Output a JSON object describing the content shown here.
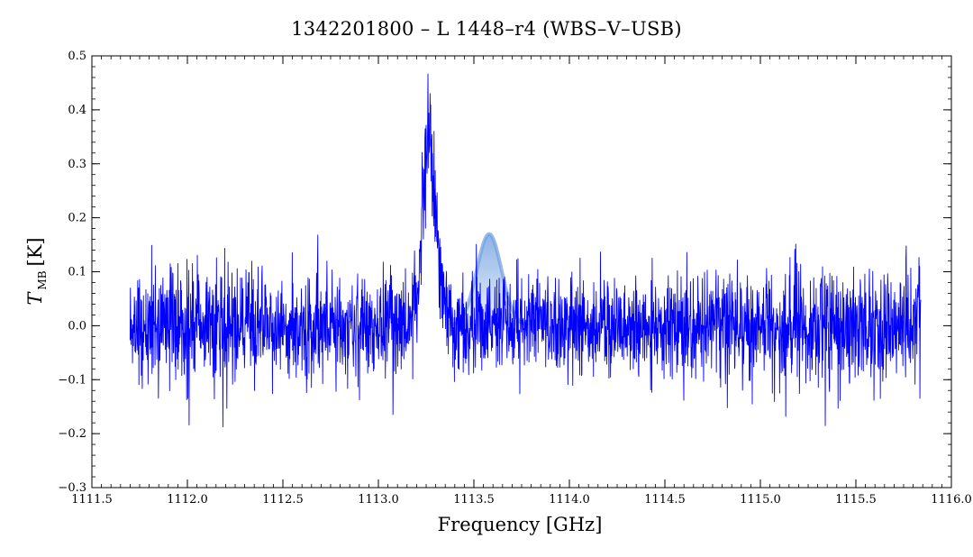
{
  "chart_data": {
    "type": "line",
    "title": "1342201800 – L 1448–r4 (WBS–V–USB)",
    "xlabel": "Frequency [GHz]",
    "ylabel": {
      "main": "T",
      "subscript": "MB",
      "unit": "[K]"
    },
    "xlim": [
      1111.5,
      1116.0
    ],
    "ylim": [
      -0.3,
      0.5
    ],
    "x_ticks": [
      1111.5,
      1112.0,
      1112.5,
      1113.0,
      1113.5,
      1114.0,
      1114.5,
      1115.0,
      1115.5,
      1116.0
    ],
    "x_tick_labels": [
      "1111.5",
      "1112.0",
      "1112.5",
      "1113.0",
      "1113.5",
      "1114.0",
      "1114.5",
      "1115.0",
      "1115.5",
      "1116.0"
    ],
    "y_ticks": [
      -0.3,
      -0.2,
      -0.1,
      0.0,
      0.1,
      0.2,
      0.3,
      0.4,
      0.5
    ],
    "y_tick_labels": [
      "−0.3",
      "−0.2",
      "−0.1",
      "0.0",
      "0.1",
      "0.2",
      "0.3",
      "0.4",
      "0.5"
    ],
    "grid": false,
    "series": [
      {
        "color": "#0000ff",
        "x_range": [
          1111.7,
          1115.84
        ],
        "noise_rms_K": [
          0.055,
          0.05,
          0.048,
          0.045,
          0.06
        ],
        "noise_rms_at_GHz": [
          1111.7,
          1112.5,
          1113.6,
          1114.5,
          1115.84
        ],
        "peak_min_K": -0.23,
        "peak_max_K": 0.47,
        "lines": [
          {
            "center_GHz": 1113.265,
            "peak_K": 0.33,
            "fwhm_GHz": 0.09
          }
        ]
      }
    ],
    "annotations": [
      {
        "type": "shaded-marker",
        "center_GHz": 1113.58,
        "height_K": 0.17,
        "color": "#6f9fe0"
      }
    ]
  }
}
